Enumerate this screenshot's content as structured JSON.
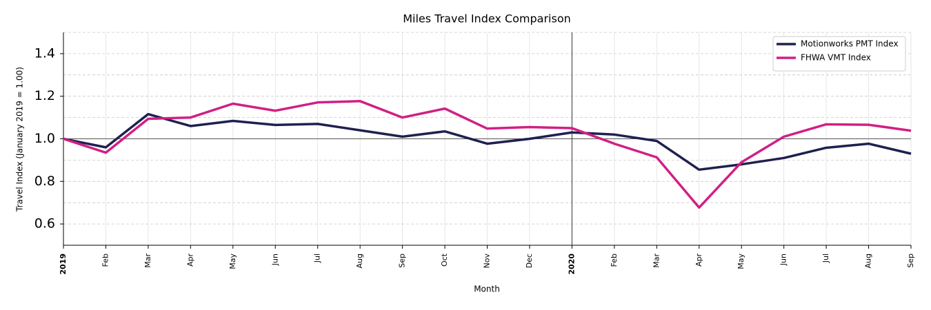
{
  "chart_data": {
    "type": "line",
    "title": "Miles Travel Index Comparison",
    "x_label": "Month",
    "y_label": "Travel Index (January 2019 = 1.00)",
    "categories": [
      "2019",
      "Feb",
      "Mar",
      "Apr",
      "May",
      "Jun",
      "Jul",
      "Aug",
      "Sep",
      "Oct",
      "Nov",
      "Dec",
      "2020",
      "Feb",
      "Mar",
      "Apr",
      "May",
      "Jun",
      "Jul",
      "Aug",
      "Sep"
    ],
    "series": [
      {
        "name": "Motionworks PMT Index",
        "color": "#1f2050",
        "values": [
          1.0,
          0.96,
          1.116,
          1.06,
          1.084,
          1.065,
          1.07,
          1.04,
          1.01,
          1.035,
          0.977,
          1.0,
          1.03,
          1.02,
          0.99,
          0.855,
          0.88,
          0.91,
          0.958,
          0.977,
          0.93
        ]
      },
      {
        "name": "FHWA VMT Index",
        "color": "#d11f84",
        "values": [
          1.0,
          0.935,
          1.094,
          1.1,
          1.165,
          1.132,
          1.171,
          1.177,
          1.1,
          1.142,
          1.048,
          1.055,
          1.05,
          0.977,
          0.913,
          0.677,
          0.89,
          1.01,
          1.068,
          1.066,
          1.038
        ]
      }
    ],
    "ylim": [
      0.5,
      1.5
    ],
    "yticks": [
      0.6,
      0.8,
      {
        "value": 1,
        "label": "1.0"
      },
      1.2,
      1.4
    ],
    "yminorticks": [
      0.7,
      0.9,
      1.1,
      1.3,
      1.5
    ],
    "reference_line": 1,
    "vline_at": "2020",
    "grid": true,
    "legend": "upper right"
  }
}
